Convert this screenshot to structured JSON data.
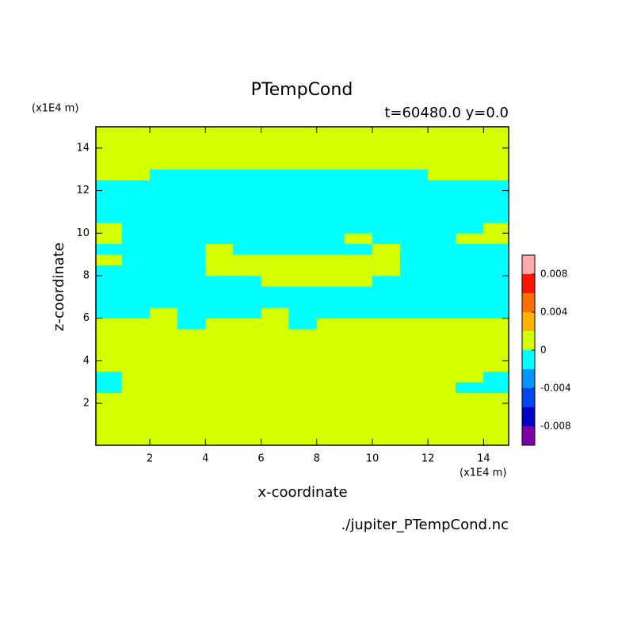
{
  "chart_data": {
    "type": "heatmap",
    "title": "PTempCond",
    "subtitle": "t=60480.0 y=0.0",
    "x_label": "x-coordinate",
    "y_label": "z-coordinate",
    "x_unit": "(x1E4 m)",
    "y_unit": "(x1E4 m)",
    "source": "./jupiter_PTempCond.nc",
    "xlim": [
      0.06,
      14.9
    ],
    "ylim": [
      0.03,
      15
    ],
    "xticks": [
      2,
      4,
      6,
      8,
      10,
      12,
      14
    ],
    "yticks": [
      2,
      4,
      6,
      8,
      10,
      12,
      14
    ],
    "x": [
      0.5,
      1.5,
      2.5,
      3.5,
      4.5,
      5.5,
      6.5,
      7.5,
      8.5,
      9.5,
      10.5,
      11.5,
      12.5,
      13.5,
      14.5
    ],
    "y": [
      0.25,
      0.75,
      1.25,
      1.75,
      2.25,
      2.75,
      3.25,
      3.75,
      4.25,
      4.75,
      5.25,
      5.75,
      6.25,
      6.75,
      7.25,
      7.75,
      8.25,
      8.75,
      9.25,
      9.75,
      10.25,
      10.75,
      11.25,
      11.75,
      12.25,
      12.75,
      13.25,
      13.75,
      14.25,
      14.75
    ],
    "z": [
      [
        0.001,
        0.001,
        0.001,
        0.001,
        0.001,
        0.001,
        0.001,
        0.001,
        0.001,
        0.001,
        0.001,
        0.001,
        0.001,
        0.001,
        0.001
      ],
      [
        0.001,
        0.001,
        0.001,
        0.001,
        0.001,
        0.001,
        0.001,
        0.001,
        0.001,
        0.001,
        0.001,
        0.001,
        0.001,
        0.001,
        0.001
      ],
      [
        0.001,
        0.001,
        0.001,
        0.001,
        0.001,
        0.001,
        0.001,
        0.001,
        0.001,
        0.001,
        0.001,
        0.001,
        0.001,
        0.001,
        0.001
      ],
      [
        0.001,
        0.001,
        0.001,
        0.001,
        0.001,
        0.001,
        0.001,
        0.001,
        0.001,
        0.001,
        0.001,
        0.001,
        0.001,
        0.001,
        0.001
      ],
      [
        0.001,
        0.001,
        0.001,
        0.001,
        0.001,
        0.001,
        0.001,
        0.001,
        0.001,
        0.001,
        0.001,
        0.001,
        0.001,
        0.001,
        0.001
      ],
      [
        -0.001,
        0.001,
        0.001,
        0.001,
        0.001,
        0.001,
        0.001,
        0.001,
        0.001,
        0.001,
        0.001,
        0.001,
        0.001,
        -0.001,
        -0.001
      ],
      [
        -0.001,
        0.001,
        0.001,
        0.001,
        0.001,
        0.001,
        0.001,
        0.001,
        0.001,
        0.001,
        0.001,
        0.001,
        0.001,
        0.001,
        -0.001
      ],
      [
        0.001,
        0.001,
        0.001,
        0.001,
        0.001,
        0.001,
        0.001,
        0.001,
        0.001,
        0.001,
        0.001,
        0.001,
        0.001,
        0.001,
        0.001
      ],
      [
        0.001,
        0.001,
        0.001,
        0.001,
        0.001,
        0.001,
        0.001,
        0.001,
        0.001,
        0.001,
        0.001,
        0.001,
        0.001,
        0.001,
        0.001
      ],
      [
        0.001,
        0.001,
        0.001,
        0.001,
        0.001,
        0.001,
        0.001,
        0.001,
        0.001,
        0.001,
        0.001,
        0.001,
        0.001,
        0.001,
        0.001
      ],
      [
        0.001,
        0.001,
        0.001,
        0.001,
        0.001,
        0.001,
        0.001,
        0.001,
        0.001,
        0.001,
        0.001,
        0.001,
        0.001,
        0.001,
        0.001
      ],
      [
        0.001,
        0.001,
        0.001,
        -0.001,
        0.001,
        0.001,
        0.001,
        -0.001,
        0.001,
        0.001,
        0.001,
        0.001,
        0.001,
        0.001,
        0.001
      ],
      [
        -0.001,
        -0.001,
        0.001,
        -0.001,
        -0.001,
        -0.001,
        0.001,
        -0.001,
        -0.001,
        -0.001,
        -0.001,
        -0.001,
        -0.001,
        -0.001,
        -0.001
      ],
      [
        -0.001,
        -0.001,
        -0.001,
        -0.001,
        -0.001,
        -0.001,
        -0.001,
        -0.001,
        -0.001,
        -0.001,
        -0.001,
        -0.001,
        -0.001,
        -0.001,
        -0.001
      ],
      [
        -0.001,
        -0.001,
        -0.001,
        -0.001,
        -0.001,
        -0.001,
        -0.001,
        -0.001,
        -0.001,
        -0.001,
        -0.001,
        -0.001,
        -0.001,
        -0.001,
        -0.001
      ],
      [
        -0.001,
        -0.001,
        -0.001,
        -0.001,
        -0.001,
        -0.001,
        0.001,
        0.001,
        0.001,
        0.001,
        -0.001,
        -0.001,
        -0.001,
        -0.001,
        -0.001
      ],
      [
        -0.001,
        -0.001,
        -0.001,
        -0.001,
        0.001,
        0.001,
        0.001,
        0.001,
        0.001,
        0.001,
        0.001,
        -0.001,
        -0.001,
        -0.001,
        -0.001
      ],
      [
        0.001,
        -0.001,
        -0.001,
        -0.001,
        0.001,
        0.001,
        0.001,
        0.001,
        0.001,
        0.001,
        0.001,
        -0.001,
        -0.001,
        -0.001,
        -0.001
      ],
      [
        -0.001,
        -0.001,
        -0.001,
        -0.001,
        0.001,
        -0.001,
        -0.001,
        -0.001,
        -0.001,
        -0.001,
        0.001,
        -0.001,
        -0.001,
        -0.001,
        -0.001
      ],
      [
        0.001,
        -0.001,
        -0.001,
        -0.001,
        -0.001,
        -0.001,
        -0.001,
        -0.001,
        -0.001,
        0.001,
        -0.001,
        -0.001,
        -0.001,
        0.001,
        0.001
      ],
      [
        0.001,
        -0.001,
        -0.001,
        -0.001,
        -0.001,
        -0.001,
        -0.001,
        -0.001,
        -0.001,
        -0.001,
        -0.001,
        -0.001,
        -0.001,
        -0.001,
        0.001
      ],
      [
        -0.001,
        -0.001,
        -0.001,
        -0.001,
        -0.001,
        -0.001,
        -0.001,
        -0.001,
        -0.001,
        -0.001,
        -0.001,
        -0.001,
        -0.001,
        -0.001,
        -0.001
      ],
      [
        -0.001,
        -0.001,
        -0.001,
        -0.001,
        -0.001,
        -0.001,
        -0.001,
        -0.001,
        -0.001,
        -0.001,
        -0.001,
        -0.001,
        -0.001,
        -0.001,
        -0.001
      ],
      [
        -0.001,
        -0.001,
        -0.001,
        -0.001,
        -0.001,
        -0.001,
        -0.001,
        -0.001,
        -0.001,
        -0.001,
        -0.001,
        -0.001,
        -0.001,
        -0.001,
        -0.001
      ],
      [
        -0.001,
        -0.001,
        -0.001,
        -0.001,
        -0.001,
        -0.001,
        -0.001,
        -0.001,
        -0.001,
        -0.001,
        -0.001,
        -0.001,
        -0.001,
        -0.001,
        -0.001
      ],
      [
        0.001,
        0.001,
        -0.001,
        -0.001,
        -0.001,
        -0.001,
        -0.001,
        -0.001,
        -0.001,
        -0.001,
        -0.001,
        -0.001,
        0.001,
        0.001,
        0.001
      ],
      [
        0.001,
        0.001,
        0.001,
        0.001,
        0.001,
        0.001,
        0.001,
        0.001,
        0.001,
        0.001,
        0.001,
        0.001,
        0.001,
        0.001,
        0.001
      ],
      [
        0.001,
        0.001,
        0.001,
        0.001,
        0.001,
        0.001,
        0.001,
        0.001,
        0.001,
        0.001,
        0.001,
        0.001,
        0.001,
        0.001,
        0.001
      ],
      [
        0.001,
        0.001,
        0.001,
        0.001,
        0.001,
        0.001,
        0.001,
        0.001,
        0.001,
        0.001,
        0.001,
        0.001,
        0.001,
        0.001,
        0.001
      ],
      [
        0.001,
        0.001,
        0.001,
        0.001,
        0.001,
        0.001,
        0.001,
        0.001,
        0.001,
        0.001,
        0.001,
        0.001,
        0.001,
        0.001,
        0.001
      ]
    ],
    "levels": [
      -0.01,
      -0.008,
      -0.006,
      -0.004,
      -0.002,
      0,
      0.002,
      0.004,
      0.006,
      0.008,
      0.01
    ],
    "colors": [
      "#7d00a8",
      "#0000c8",
      "#0046f0",
      "#0096ff",
      "#00ffff",
      "#d4ff00",
      "#ffb400",
      "#ff6e00",
      "#ff1400",
      "#ffaaaa"
    ],
    "colorbar_ticks": [
      -0.008,
      -0.004,
      0,
      0.004,
      0.008
    ]
  }
}
